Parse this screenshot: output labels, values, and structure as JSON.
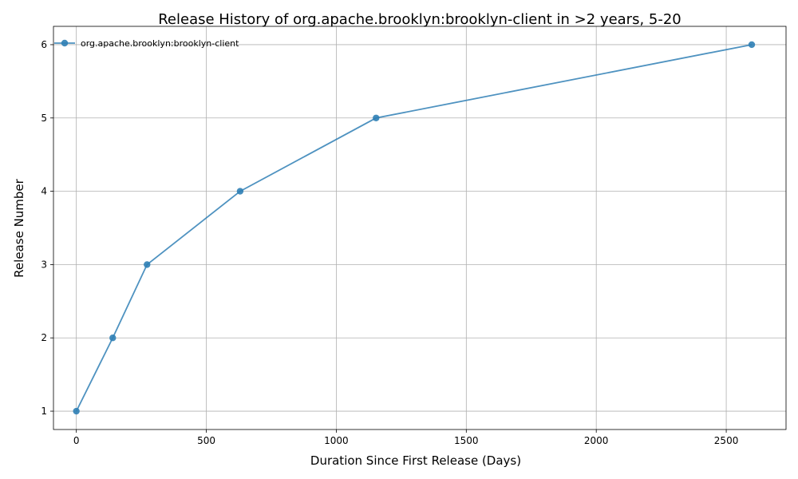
{
  "chart_data": {
    "type": "line",
    "title": "Release History of org.apache.brooklyn:brooklyn-client in >2 years, 5-20",
    "xlabel": "Duration Since First Release (Days)",
    "ylabel": "Release Number",
    "xlim": [
      -88,
      2730
    ],
    "ylim": [
      0.75,
      6.25
    ],
    "xticks": [
      0,
      500,
      1000,
      1500,
      2000,
      2500
    ],
    "yticks": [
      1,
      2,
      3,
      4,
      5,
      6
    ],
    "grid": true,
    "legend_position": "top-left",
    "series": [
      {
        "name": "org.apache.brooklyn:brooklyn-client",
        "color": "#2f7fb5",
        "marker": "circle",
        "x": [
          0,
          140,
          272,
          630,
          1153,
          2598
        ],
        "y": [
          1,
          2,
          3,
          4,
          5,
          6
        ]
      }
    ]
  }
}
